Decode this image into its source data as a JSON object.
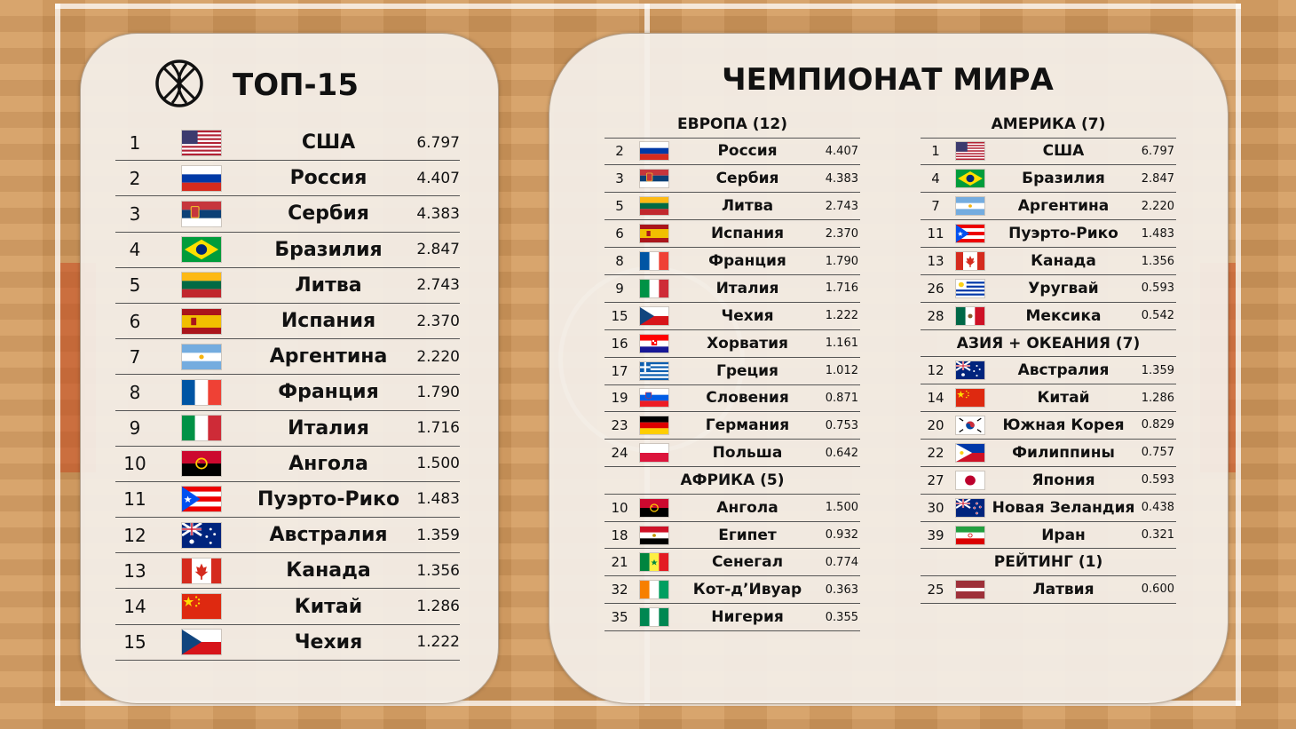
{
  "colors": {
    "court": "#d49a5c",
    "panel": "#f3eee8",
    "text": "#111111",
    "divider": "#555555"
  },
  "top15": {
    "icon": "basketball-icon",
    "title": "ТОП-15",
    "rows": [
      {
        "rank": "1",
        "country": "США",
        "score": "6.797",
        "flag": "us"
      },
      {
        "rank": "2",
        "country": "Россия",
        "score": "4.407",
        "flag": "ru"
      },
      {
        "rank": "3",
        "country": "Сербия",
        "score": "4.383",
        "flag": "rs"
      },
      {
        "rank": "4",
        "country": "Бразилия",
        "score": "2.847",
        "flag": "br"
      },
      {
        "rank": "5",
        "country": "Литва",
        "score": "2.743",
        "flag": "lt"
      },
      {
        "rank": "6",
        "country": "Испания",
        "score": "2.370",
        "flag": "es"
      },
      {
        "rank": "7",
        "country": "Аргентина",
        "score": "2.220",
        "flag": "ar"
      },
      {
        "rank": "8",
        "country": "Франция",
        "score": "1.790",
        "flag": "fr"
      },
      {
        "rank": "9",
        "country": "Италия",
        "score": "1.716",
        "flag": "it"
      },
      {
        "rank": "10",
        "country": "Ангола",
        "score": "1.500",
        "flag": "ao"
      },
      {
        "rank": "11",
        "country": "Пуэрто-Рико",
        "score": "1.483",
        "flag": "pr"
      },
      {
        "rank": "12",
        "country": "Австралия",
        "score": "1.359",
        "flag": "au"
      },
      {
        "rank": "13",
        "country": "Канада",
        "score": "1.356",
        "flag": "ca"
      },
      {
        "rank": "14",
        "country": "Китай",
        "score": "1.286",
        "flag": "cn"
      },
      {
        "rank": "15",
        "country": "Чехия",
        "score": "1.222",
        "flag": "cz"
      }
    ]
  },
  "world_cup": {
    "title": "ЧЕМПИОНАТ МИРА",
    "columns": [
      {
        "groups": [
          {
            "title": "ЕВРОПА (12)",
            "rows": [
              {
                "rank": "2",
                "country": "Россия",
                "score": "4.407",
                "flag": "ru"
              },
              {
                "rank": "3",
                "country": "Сербия",
                "score": "4.383",
                "flag": "rs"
              },
              {
                "rank": "5",
                "country": "Литва",
                "score": "2.743",
                "flag": "lt"
              },
              {
                "rank": "6",
                "country": "Испания",
                "score": "2.370",
                "flag": "es"
              },
              {
                "rank": "8",
                "country": "Франция",
                "score": "1.790",
                "flag": "fr"
              },
              {
                "rank": "9",
                "country": "Италия",
                "score": "1.716",
                "flag": "it"
              },
              {
                "rank": "15",
                "country": "Чехия",
                "score": "1.222",
                "flag": "cz"
              },
              {
                "rank": "16",
                "country": "Хорватия",
                "score": "1.161",
                "flag": "hr"
              },
              {
                "rank": "17",
                "country": "Греция",
                "score": "1.012",
                "flag": "gr"
              },
              {
                "rank": "19",
                "country": "Словения",
                "score": "0.871",
                "flag": "si"
              },
              {
                "rank": "23",
                "country": "Германия",
                "score": "0.753",
                "flag": "de"
              },
              {
                "rank": "24",
                "country": "Польша",
                "score": "0.642",
                "flag": "pl"
              }
            ]
          },
          {
            "title": "АФРИКА (5)",
            "rows": [
              {
                "rank": "10",
                "country": "Ангола",
                "score": "1.500",
                "flag": "ao"
              },
              {
                "rank": "18",
                "country": "Египет",
                "score": "0.932",
                "flag": "eg"
              },
              {
                "rank": "21",
                "country": "Сенегал",
                "score": "0.774",
                "flag": "sn"
              },
              {
                "rank": "32",
                "country": "Кот-д’Ивуар",
                "score": "0.363",
                "flag": "ci"
              },
              {
                "rank": "35",
                "country": "Нигерия",
                "score": "0.355",
                "flag": "ng"
              }
            ]
          }
        ]
      },
      {
        "groups": [
          {
            "title": "АМЕРИКА (7)",
            "rows": [
              {
                "rank": "1",
                "country": "США",
                "score": "6.797",
                "flag": "us"
              },
              {
                "rank": "4",
                "country": "Бразилия",
                "score": "2.847",
                "flag": "br"
              },
              {
                "rank": "7",
                "country": "Аргентина",
                "score": "2.220",
                "flag": "ar"
              },
              {
                "rank": "11",
                "country": "Пуэрто-Рико",
                "score": "1.483",
                "flag": "pr"
              },
              {
                "rank": "13",
                "country": "Канада",
                "score": "1.356",
                "flag": "ca"
              },
              {
                "rank": "26",
                "country": "Уругвай",
                "score": "0.593",
                "flag": "uy"
              },
              {
                "rank": "28",
                "country": "Мексика",
                "score": "0.542",
                "flag": "mx"
              }
            ]
          },
          {
            "title": "АЗИЯ + ОКЕАНИЯ (7)",
            "rows": [
              {
                "rank": "12",
                "country": "Австралия",
                "score": "1.359",
                "flag": "au"
              },
              {
                "rank": "14",
                "country": "Китай",
                "score": "1.286",
                "flag": "cn"
              },
              {
                "rank": "20",
                "country": "Южная Корея",
                "score": "0.829",
                "flag": "kr"
              },
              {
                "rank": "22",
                "country": "Филиппины",
                "score": "0.757",
                "flag": "ph"
              },
              {
                "rank": "27",
                "country": "Япония",
                "score": "0.593",
                "flag": "jp"
              },
              {
                "rank": "30",
                "country": "Новая Зеландия",
                "score": "0.438",
                "flag": "nz"
              },
              {
                "rank": "39",
                "country": "Иран",
                "score": "0.321",
                "flag": "ir"
              }
            ]
          },
          {
            "title": "РЕЙТИНГ (1)",
            "rows": [
              {
                "rank": "25",
                "country": "Латвия",
                "score": "0.600",
                "flag": "lv"
              }
            ]
          }
        ]
      }
    ]
  }
}
